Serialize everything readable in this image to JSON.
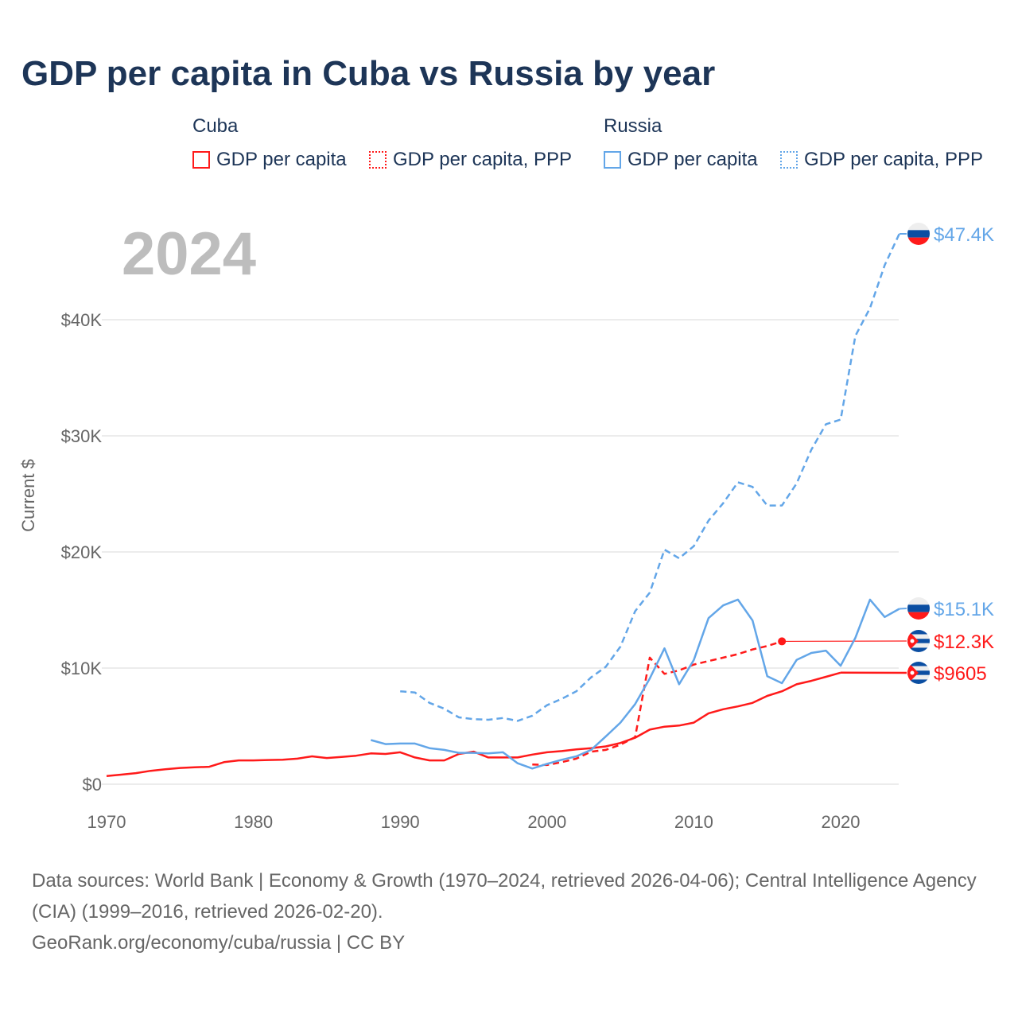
{
  "title": "GDP per capita in Cuba vs Russia by year",
  "year_label": "2024",
  "legend": {
    "groups": [
      {
        "name": "Cuba",
        "items": [
          "GDP per capita",
          "GDP per capita, PPP"
        ],
        "color": "#ff1a1a"
      },
      {
        "name": "Russia",
        "items": [
          "GDP per capita",
          "GDP per capita, PPP"
        ],
        "color": "#63a6e8"
      }
    ]
  },
  "source": {
    "line1": "Data sources: World Bank | Economy & Growth (1970–2024, retrieved 2026-04-06); Central Intelligence Agency (CIA) (1999–2016, retrieved 2026-02-20).",
    "line2": "GeoRank.org/economy/cuba/russia | CC BY"
  },
  "chart_data": {
    "type": "line",
    "title": "GDP per capita in Cuba vs Russia by year",
    "xlabel": "",
    "ylabel": "Current $",
    "xlim": [
      1970,
      2024
    ],
    "ylim": [
      0,
      48000
    ],
    "xticks": [
      {
        "v": 1970,
        "label": "1970"
      },
      {
        "v": 1980,
        "label": "1980"
      },
      {
        "v": 1990,
        "label": "1990"
      },
      {
        "v": 2000,
        "label": "2000"
      },
      {
        "v": 2010,
        "label": "2010"
      },
      {
        "v": 2020,
        "label": "2020"
      }
    ],
    "yticks": [
      {
        "v": 0,
        "label": "$0"
      },
      {
        "v": 10000,
        "label": "$10K"
      },
      {
        "v": 20000,
        "label": "$20K"
      },
      {
        "v": 30000,
        "label": "$30K"
      },
      {
        "v": 40000,
        "label": "$40K"
      }
    ],
    "grid": true,
    "legend_position": "top",
    "series": [
      {
        "name": "Cuba GDP per capita",
        "country": "cuba",
        "color": "#ff1a1a",
        "dashed": false,
        "end_label": "$9605",
        "x": [
          1970,
          1971,
          1972,
          1973,
          1974,
          1975,
          1976,
          1977,
          1978,
          1979,
          1980,
          1981,
          1982,
          1983,
          1984,
          1985,
          1986,
          1987,
          1988,
          1989,
          1990,
          1991,
          1992,
          1993,
          1994,
          1995,
          1996,
          1997,
          1998,
          1999,
          2000,
          2001,
          2002,
          2003,
          2004,
          2005,
          2006,
          2007,
          2008,
          2009,
          2010,
          2011,
          2012,
          2013,
          2014,
          2015,
          2016,
          2017,
          2018,
          2019,
          2020
        ],
        "y": [
          700,
          820,
          950,
          1150,
          1280,
          1400,
          1450,
          1500,
          1900,
          2050,
          2050,
          2080,
          2100,
          2200,
          2400,
          2250,
          2350,
          2450,
          2650,
          2600,
          2750,
          2300,
          2050,
          2050,
          2600,
          2800,
          2300,
          2300,
          2300,
          2550,
          2750,
          2850,
          3000,
          3100,
          3250,
          3550,
          4000,
          4700,
          4950,
          5050,
          5300,
          6100,
          6450,
          6700,
          7000,
          7600,
          8000,
          8600,
          8900,
          9250,
          9605
        ]
      },
      {
        "name": "Cuba GDP per capita, PPP",
        "country": "cuba",
        "color": "#ff1a1a",
        "dashed": true,
        "end_label": "$12.3K",
        "x": [
          1999,
          2000,
          2001,
          2002,
          2003,
          2004,
          2005,
          2006,
          2007,
          2008,
          2009,
          2010,
          2011,
          2012,
          2013,
          2014,
          2015,
          2016
        ],
        "y": [
          1700,
          1650,
          1900,
          2200,
          2800,
          2950,
          3400,
          4050,
          10900,
          9500,
          9800,
          10300,
          10600,
          10900,
          11200,
          11600,
          11900,
          12300
        ]
      },
      {
        "name": "Russia GDP per capita",
        "country": "russia",
        "color": "#63a6e8",
        "dashed": false,
        "end_label": "$15.1K",
        "x": [
          1988,
          1989,
          1990,
          1991,
          1992,
          1993,
          1994,
          1995,
          1996,
          1997,
          1998,
          1999,
          2000,
          2001,
          2002,
          2003,
          2004,
          2005,
          2006,
          2007,
          2008,
          2009,
          2010,
          2011,
          2012,
          2013,
          2014,
          2015,
          2016,
          2017,
          2018,
          2019,
          2020,
          2021,
          2022,
          2023,
          2024
        ],
        "y": [
          3800,
          3450,
          3500,
          3500,
          3100,
          2950,
          2700,
          2700,
          2650,
          2750,
          1800,
          1350,
          1750,
          2100,
          2400,
          2950,
          4100,
          5300,
          6900,
          9100,
          11700,
          8600,
          10700,
          14300,
          15400,
          15900,
          14100,
          9300,
          8700,
          10700,
          11300,
          11500,
          10200,
          12600,
          15900,
          14400,
          15100
        ]
      },
      {
        "name": "Russia GDP per capita, PPP",
        "country": "russia",
        "color": "#63a6e8",
        "dashed": true,
        "end_label": "$47.4K",
        "x": [
          1990,
          1991,
          1992,
          1993,
          1994,
          1995,
          1996,
          1997,
          1998,
          1999,
          2000,
          2001,
          2002,
          2003,
          2004,
          2005,
          2006,
          2007,
          2008,
          2009,
          2010,
          2011,
          2012,
          2013,
          2014,
          2015,
          2016,
          2017,
          2018,
          2019,
          2020,
          2021,
          2022,
          2023,
          2024
        ],
        "y": [
          8000,
          7900,
          7000,
          6500,
          5750,
          5600,
          5550,
          5700,
          5450,
          5900,
          6800,
          7350,
          8000,
          9200,
          10100,
          11850,
          14900,
          16500,
          20200,
          19450,
          20500,
          22700,
          24200,
          26000,
          25600,
          24000,
          24000,
          25900,
          28800,
          31000,
          31400,
          38600,
          41000,
          44700,
          47400
        ]
      }
    ]
  }
}
